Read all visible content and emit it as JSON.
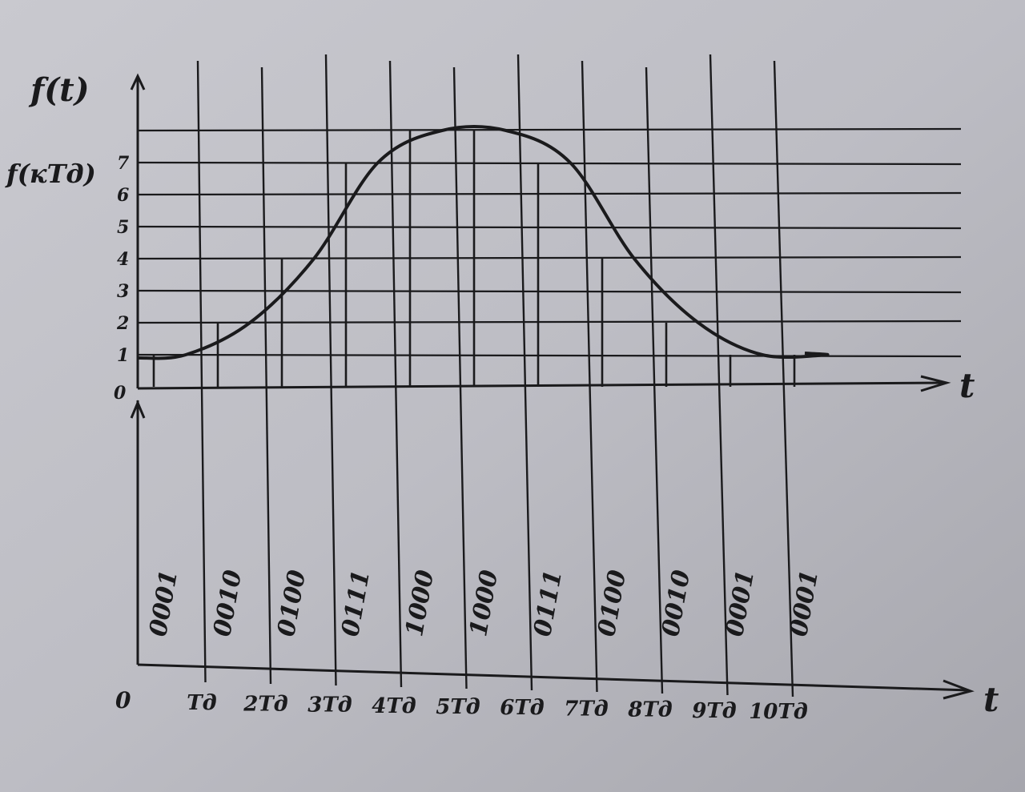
{
  "diagram": {
    "upper_axis": {
      "y_label": "f(t)",
      "y_label_secondary": "f(кTд)",
      "x_label": "t",
      "origin_label": "0",
      "level_labels": [
        "1",
        "2",
        "3",
        "4",
        "5",
        "6",
        "7"
      ]
    },
    "lower_axis": {
      "x_label": "t",
      "origin_label": "0",
      "tick_labels": [
        "Tд",
        "2Tд",
        "3Tд",
        "4Tд",
        "5Tд",
        "6Tд",
        "7Tд",
        "8Tд",
        "9Tд",
        "10Tд"
      ]
    },
    "samples": [
      1,
      2,
      4,
      7,
      8,
      8,
      7,
      4,
      2,
      1,
      1
    ],
    "codes": [
      "0001",
      "0010",
      "0100",
      "0111",
      "1000",
      "1000",
      "0111",
      "0100",
      "0010",
      "0001",
      "0001"
    ]
  }
}
